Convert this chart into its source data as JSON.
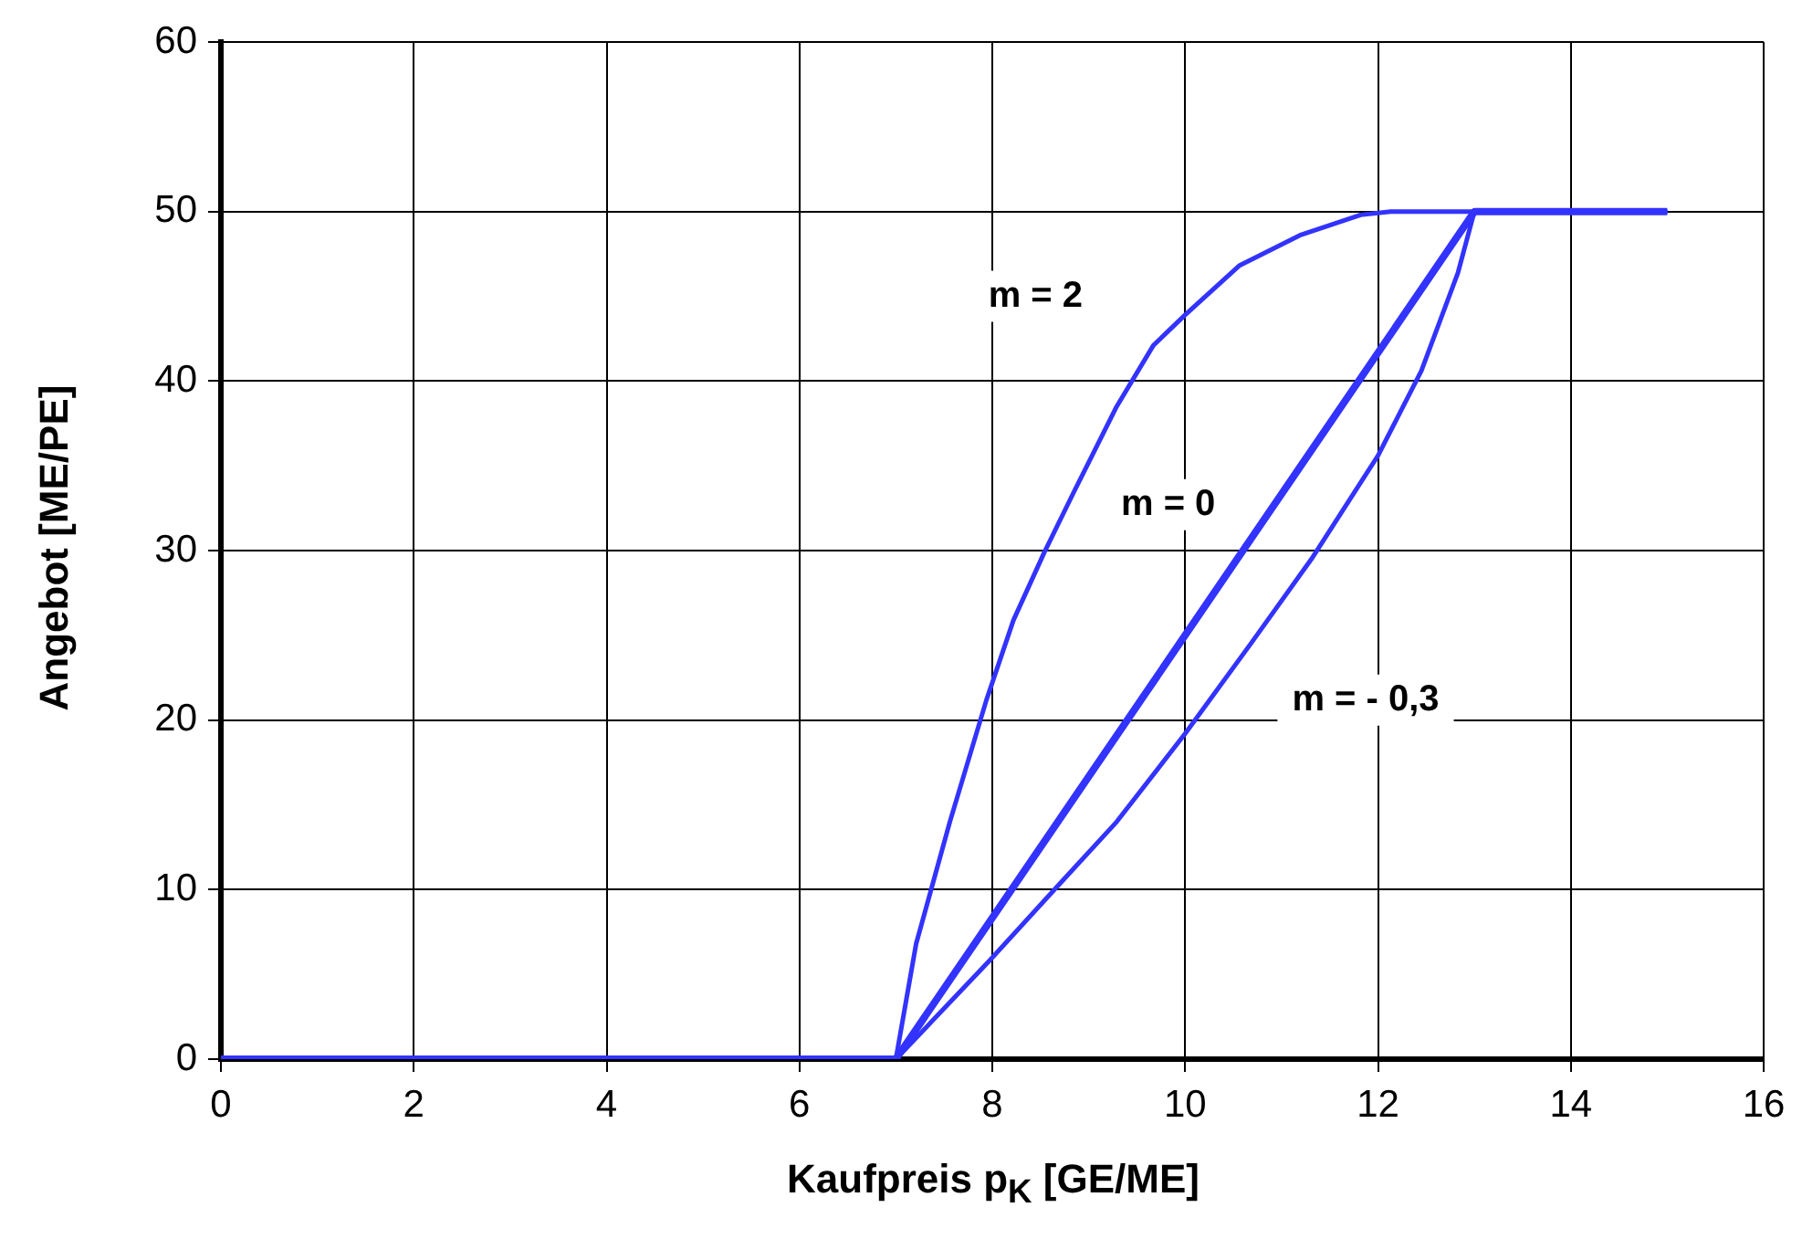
{
  "chart_data": {
    "type": "line",
    "xlabel": "Kaufpreis p$_{K}$ [GE/ME]",
    "ylabel": "Angebot [ME/PE]",
    "xlim": [
      0,
      16
    ],
    "xticks": [
      0,
      2,
      4,
      6,
      8,
      10,
      12,
      14,
      16
    ],
    "ylim": [
      0,
      60
    ],
    "yticks": [
      0,
      10,
      20,
      30,
      40,
      50,
      60
    ],
    "grid": true,
    "legend": false,
    "marker": "none",
    "line_style": "solid",
    "series": [
      {
        "name": "m = 2",
        "color": "#3333ff",
        "x": [
          0,
          7,
          7.21,
          7.56,
          7.94,
          8.22,
          8.54,
          8.85,
          9.29,
          9.67,
          10.0,
          10.56,
          11.19,
          11.82,
          12.13,
          13,
          15
        ],
        "values": [
          0,
          0,
          6.8,
          14.0,
          21.2,
          25.9,
          29.9,
          33.5,
          38.5,
          42.1,
          43.9,
          46.8,
          48.6,
          49.8,
          50,
          50,
          50
        ]
      },
      {
        "name": "m = 0",
        "color": "#3333ff",
        "x": [
          0,
          7,
          13,
          15
        ],
        "values": [
          0,
          0,
          50,
          50
        ]
      },
      {
        "name": "m = - 0,3",
        "color": "#3333ff",
        "x": [
          0,
          7,
          7.97,
          8.66,
          9.29,
          10.0,
          10.68,
          11.31,
          12.0,
          12.45,
          12.83,
          13,
          15
        ],
        "values": [
          0,
          0,
          5.8,
          10.1,
          14.0,
          19.2,
          24.5,
          29.5,
          35.6,
          40.6,
          46.4,
          50,
          50
        ]
      }
    ]
  }
}
